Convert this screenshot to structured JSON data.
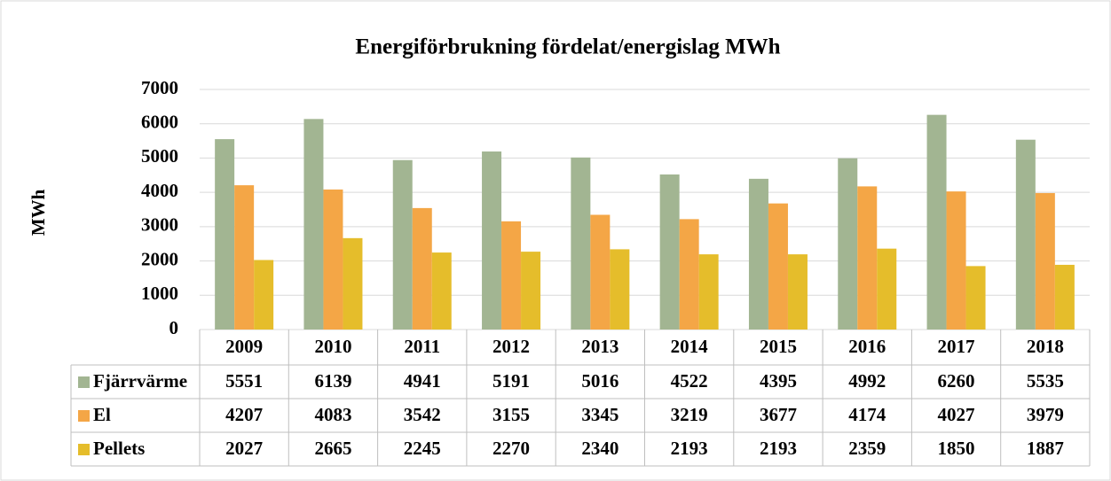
{
  "chart_data": {
    "type": "bar",
    "title": "Energiförbrukning fördelat/energislag MWh",
    "y_label": "MWh",
    "categories": [
      "2009",
      "2010",
      "2011",
      "2012",
      "2013",
      "2014",
      "2015",
      "2016",
      "2017",
      "2018"
    ],
    "series": [
      {
        "name": "Fjärrvärme",
        "color": "#a2b592",
        "values": [
          5551,
          6139,
          4941,
          5191,
          5016,
          4522,
          4395,
          4992,
          6260,
          5535
        ]
      },
      {
        "name": "El",
        "color": "#f4a646",
        "values": [
          4207,
          4083,
          3542,
          3155,
          3345,
          3219,
          3677,
          4174,
          4027,
          3979
        ]
      },
      {
        "name": "Pellets",
        "color": "#e5bd2b",
        "values": [
          2027,
          2665,
          2245,
          2270,
          2340,
          2193,
          2193,
          2359,
          1850,
          1887
        ]
      }
    ],
    "ylim": [
      0,
      7000
    ],
    "yticks": [
      0,
      1000,
      2000,
      3000,
      4000,
      5000,
      6000,
      7000
    ],
    "grid": true,
    "data_table": true
  }
}
